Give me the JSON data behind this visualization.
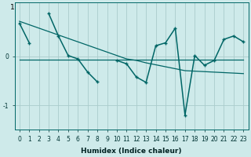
{
  "xlabel": "Humidex (Indice chaleur)",
  "background_color": "#ceeaea",
  "grid_color": "#aacccc",
  "line_color": "#006666",
  "x_data": [
    0,
    1,
    2,
    3,
    4,
    5,
    6,
    7,
    8,
    9,
    10,
    11,
    12,
    13,
    14,
    15,
    16,
    17,
    18,
    19,
    20,
    21,
    22,
    23
  ],
  "y_main": [
    0.68,
    0.28,
    null,
    0.88,
    0.42,
    0.02,
    -0.05,
    -0.32,
    -0.52,
    null,
    -0.08,
    -0.15,
    -0.42,
    -0.53,
    0.22,
    0.28,
    0.58,
    -1.2,
    0.02,
    -0.18,
    -0.08,
    0.35,
    0.42,
    0.3
  ],
  "y_trend1": [
    0.72,
    0.65,
    0.58,
    0.51,
    0.44,
    0.37,
    0.3,
    0.23,
    0.16,
    0.09,
    0.02,
    -0.05,
    -0.08,
    -0.13,
    -0.17,
    -0.21,
    -0.25,
    -0.29,
    -0.3,
    -0.31,
    -0.32,
    -0.33,
    -0.34,
    -0.35
  ],
  "y_trend2": [
    -0.06,
    -0.06,
    -0.06,
    -0.06,
    -0.06,
    -0.06,
    -0.06,
    -0.06,
    -0.06,
    -0.06,
    -0.06,
    -0.06,
    -0.06,
    -0.06,
    -0.06,
    -0.06,
    -0.06,
    -0.06,
    -0.06,
    -0.06,
    -0.06,
    -0.06,
    -0.06,
    -0.06
  ],
  "yticks": [
    -1,
    0
  ],
  "ytick_labels": [
    "-1",
    "0"
  ],
  "ylim": [
    -1.5,
    1.1
  ],
  "xlim": [
    -0.5,
    23.5
  ],
  "ytop_label": "1"
}
